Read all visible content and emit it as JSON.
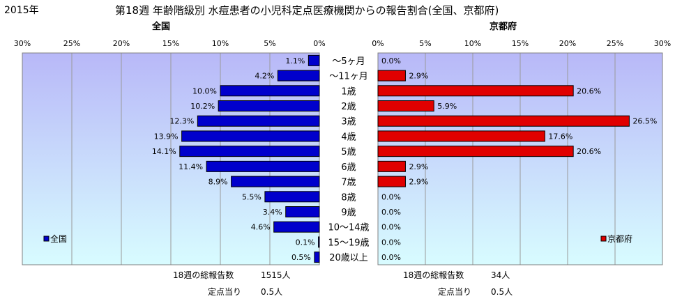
{
  "year_label": "2015年",
  "title": "第18週 年齢階級別 水痘患者の小児科定点医療機関からの報告割合(全国、京都府)",
  "colors": {
    "national_bar": "#0000cc",
    "kyoto_bar": "#e00000",
    "plot_bg_top": "#b8b8f8",
    "plot_bg_bottom": "#d8fcff"
  },
  "chart_data": [
    {
      "type": "bar",
      "orientation": "horizontal",
      "direction": "right-to-left",
      "title": "全国",
      "categories": [
        "〜5ヶ月",
        "〜11ヶ月",
        "1歳",
        "2歳",
        "3歳",
        "4歳",
        "5歳",
        "6歳",
        "7歳",
        "8歳",
        "9歳",
        "10〜14歳",
        "15〜19歳",
        "20歳以上"
      ],
      "values": [
        1.1,
        4.2,
        10.0,
        10.2,
        12.3,
        13.9,
        14.1,
        11.4,
        8.9,
        5.5,
        3.4,
        4.6,
        0.1,
        0.5
      ],
      "value_labels": [
        "1.1%",
        "4.2%",
        "10.0%",
        "10.2%",
        "12.3%",
        "13.9%",
        "14.1%",
        "11.4%",
        "8.9%",
        "5.5%",
        "3.4%",
        "4.6%",
        "0.1%",
        "0.5%"
      ],
      "series": [
        {
          "name": "全国"
        }
      ],
      "xlim": [
        0,
        30
      ],
      "ticks": [
        "30%",
        "25%",
        "20%",
        "15%",
        "10%",
        "5%",
        "0%"
      ],
      "grid": true,
      "legend_position": "bottom-left",
      "footer": {
        "total_label": "18週の総報告数",
        "total_value": "1515人",
        "per_site_label": "定点当り",
        "per_site_value": "0.5人"
      }
    },
    {
      "type": "bar",
      "orientation": "horizontal",
      "direction": "left-to-right",
      "title": "京都府",
      "categories": [
        "〜5ヶ月",
        "〜11ヶ月",
        "1歳",
        "2歳",
        "3歳",
        "4歳",
        "5歳",
        "6歳",
        "7歳",
        "8歳",
        "9歳",
        "10〜14歳",
        "15〜19歳",
        "20歳以上"
      ],
      "values": [
        0.0,
        2.9,
        20.6,
        5.9,
        26.5,
        17.6,
        20.6,
        2.9,
        2.9,
        0.0,
        0.0,
        0.0,
        0.0,
        0.0
      ],
      "value_labels": [
        "0.0%",
        "2.9%",
        "20.6%",
        "5.9%",
        "26.5%",
        "17.6%",
        "20.6%",
        "2.9%",
        "2.9%",
        "0.0%",
        "0.0%",
        "0.0%",
        "0.0%",
        "0.0%"
      ],
      "series": [
        {
          "name": "京都府"
        }
      ],
      "xlim": [
        0,
        30
      ],
      "ticks": [
        "0%",
        "5%",
        "10%",
        "15%",
        "20%",
        "25%",
        "30%"
      ],
      "grid": true,
      "legend_position": "bottom-right",
      "footer": {
        "total_label": "18週の総報告数",
        "total_value": "34人",
        "per_site_label": "定点当り",
        "per_site_value": "0.5人"
      }
    }
  ]
}
